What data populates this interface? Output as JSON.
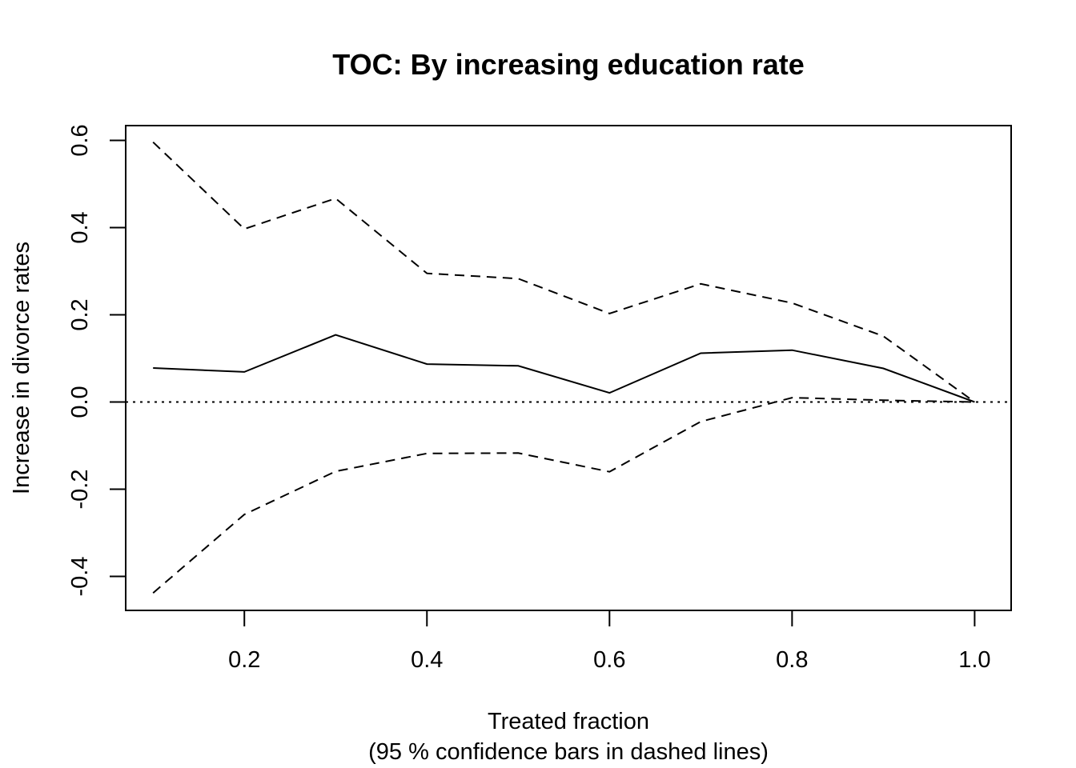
{
  "chart_data": {
    "type": "line",
    "title": "TOC: By increasing education rate",
    "xlabel": "Treated fraction",
    "xlabel2": "(95 % confidence bars in dashed lines)",
    "ylabel": "Increase in divorce rates",
    "xlim": [
      0.07,
      1.04
    ],
    "ylim": [
      -0.478,
      0.634
    ],
    "xticks": [
      0.2,
      0.4,
      0.6,
      0.8,
      1.0
    ],
    "xtick_labels": [
      "0.2",
      "0.4",
      "0.6",
      "0.8",
      "1.0"
    ],
    "yticks": [
      -0.4,
      -0.2,
      0.0,
      0.2,
      0.4,
      0.6
    ],
    "ytick_labels": [
      "-0.4",
      "-0.2",
      "0.0",
      "0.2",
      "0.4",
      "0.6"
    ],
    "x": [
      0.1,
      0.2,
      0.3,
      0.4,
      0.5,
      0.6,
      0.7,
      0.8,
      0.9,
      1.0
    ],
    "series": [
      {
        "style": "solid",
        "values": [
          0.078,
          0.069,
          0.154,
          0.087,
          0.083,
          0.021,
          0.112,
          0.119,
          0.077,
          0.0
        ]
      },
      {
        "style": "dashed",
        "values": [
          0.596,
          0.397,
          0.467,
          0.295,
          0.283,
          0.203,
          0.271,
          0.227,
          0.151,
          0.0
        ]
      },
      {
        "style": "dashed",
        "values": [
          -0.438,
          -0.258,
          -0.159,
          -0.118,
          -0.117,
          -0.16,
          -0.045,
          0.01,
          0.004,
          0.0
        ]
      }
    ],
    "reference_line": {
      "y": 0.0,
      "style": "dotted"
    },
    "grid": false,
    "legend": "none",
    "colors": {
      "lines": "#000000",
      "background": "#ffffff"
    }
  }
}
